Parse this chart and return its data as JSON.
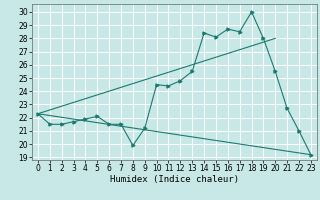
{
  "xlabel": "Humidex (Indice chaleur)",
  "bg_color": "#c8e8e8",
  "grid_color": "#ffffff",
  "line_color": "#1a7a6e",
  "xlim": [
    -0.5,
    23.5
  ],
  "ylim": [
    18.8,
    30.6
  ],
  "yticks": [
    19,
    20,
    21,
    22,
    23,
    24,
    25,
    26,
    27,
    28,
    29,
    30
  ],
  "xticks": [
    0,
    1,
    2,
    3,
    4,
    5,
    6,
    7,
    8,
    9,
    10,
    11,
    12,
    13,
    14,
    15,
    16,
    17,
    18,
    19,
    20,
    21,
    22,
    23
  ],
  "line1_x": [
    0,
    1,
    2,
    3,
    4,
    5,
    6,
    7,
    8,
    9,
    10,
    11,
    12,
    13,
    14,
    15,
    16,
    17,
    18,
    19,
    20,
    21,
    22,
    23
  ],
  "line1_y": [
    22.3,
    21.5,
    21.5,
    21.7,
    21.9,
    22.1,
    21.5,
    21.5,
    19.9,
    21.2,
    24.5,
    24.4,
    24.8,
    25.5,
    28.4,
    28.1,
    28.7,
    28.5,
    30.0,
    28.0,
    25.5,
    22.7,
    21.0,
    19.2
  ],
  "line2_x": [
    0,
    20
  ],
  "line2_y": [
    22.3,
    28.0
  ],
  "line3_x": [
    0,
    23
  ],
  "line3_y": [
    22.3,
    19.2
  ],
  "xlabel_fontsize": 6.5,
  "tick_fontsize": 5.5
}
